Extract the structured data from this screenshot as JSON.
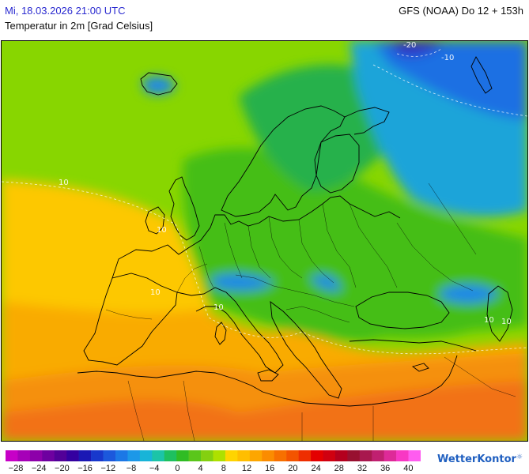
{
  "header": {
    "datetime": "Mi, 18.03.2026 21:00 UTC",
    "model": "GFS (NOAA) Do 12 + 153h",
    "title": "Temperatur in 2m [Grad Celsius]"
  },
  "map": {
    "region": "Europe",
    "contour_labels": [
      "-20",
      "-10",
      "10",
      "10",
      "10",
      "10",
      "10",
      "10"
    ],
    "zones": {
      "sahara": "#f27218",
      "north_africa": "#f5900e",
      "mediterranean": "#f9ab00",
      "iberia": "#fdc800",
      "atlantic": "#88d600",
      "europe_land": "#44be18",
      "scandinavia_north": "#27b14c",
      "russia_north": "#1aa4d9",
      "arctic": "#1c6fe3",
      "arctic_core": "#2d2fc6",
      "alps": "#1a88e8"
    }
  },
  "colorbar": {
    "colors": [
      "#c700c7",
      "#a600b8",
      "#8d00aa",
      "#6e00a0",
      "#520098",
      "#3400a0",
      "#1a18b4",
      "#1838cc",
      "#1c58dc",
      "#1c78e6",
      "#1c98e8",
      "#18b4d8",
      "#1cc4a8",
      "#1ec060",
      "#30bc24",
      "#5ac61a",
      "#84d010",
      "#aee000",
      "#ffd400",
      "#ffbe00",
      "#fda600",
      "#fb8c00",
      "#f77000",
      "#f35400",
      "#ee2e00",
      "#e40000",
      "#d00010",
      "#b4001e",
      "#981030",
      "#a8184e",
      "#c02070",
      "#de2a98",
      "#f838c4",
      "#ff5cf0"
    ],
    "tick_labels": [
      "−28",
      "−24",
      "−20",
      "−16",
      "−12",
      "−8",
      "−4",
      "0",
      "4",
      "8",
      "12",
      "16",
      "20",
      "24",
      "28",
      "32",
      "36",
      "40"
    ]
  },
  "branding": {
    "logo_text": "WetterKontor"
  }
}
